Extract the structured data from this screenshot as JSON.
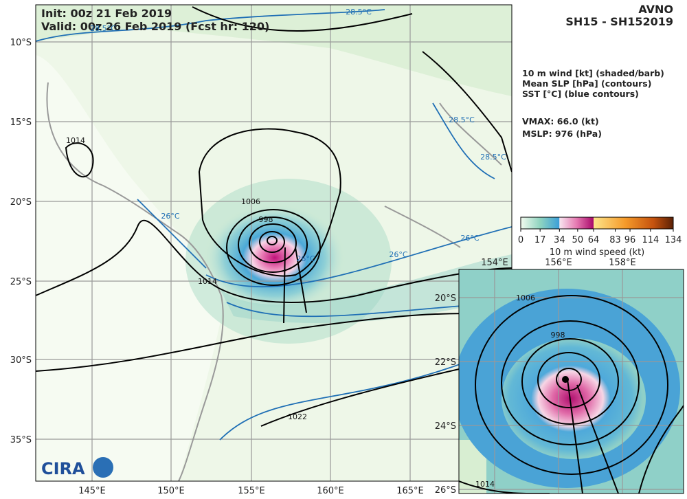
{
  "header": {
    "init": "Init:   00z 21 Feb 2019",
    "valid": "Valid: 00z 26 Feb 2019 (Fcst hr: 120)",
    "model": "AVNO",
    "storm": "SH15 - SH152019"
  },
  "legend": {
    "lines": [
      "10 m wind [kt] (shaded/barb)",
      "Mean SLP [hPa] (contours)",
      "SST [°C] (blue contours)"
    ],
    "vmax": "VMAX:  66.0 (kt)",
    "mslp": "MSLP:  976 (hPa)"
  },
  "colorbar": {
    "ticks": [
      0,
      17,
      34,
      50,
      64,
      83,
      96,
      114,
      134
    ],
    "label": "10 m wind speed (kt)"
  },
  "main_map": {
    "lat_labels": [
      "10°S",
      "15°S",
      "20°S",
      "25°S",
      "30°S",
      "35°S"
    ],
    "lon_labels": [
      "145°E",
      "150°E",
      "155°E",
      "160°E",
      "165°E"
    ],
    "contour_labels": [
      "1014",
      "1006",
      "998",
      "1014",
      "1022"
    ],
    "sst_labels": [
      "28.5°C",
      "28.5°C",
      "28.5°C",
      "28.5°C",
      "26°C",
      "26°C",
      "26°C",
      "26°C"
    ]
  },
  "inset": {
    "lon_labels": [
      "154°E",
      "156°E",
      "158°E"
    ],
    "lat_labels": [
      "20°S",
      "22°S",
      "24°S",
      "26°S"
    ],
    "contour_labels": [
      "1006",
      "998",
      "1014"
    ]
  },
  "logo": "CIRA"
}
